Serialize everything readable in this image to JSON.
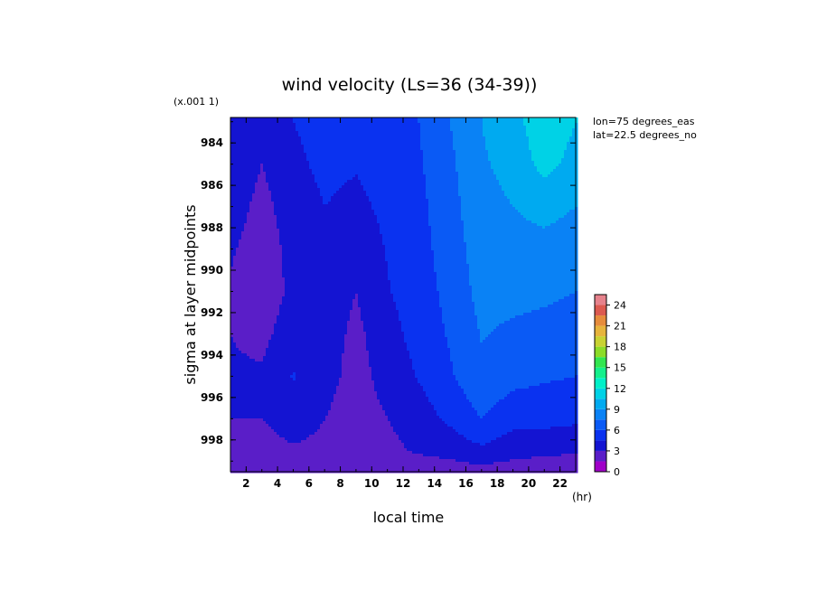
{
  "chart_data": {
    "type": "heatmap",
    "title": "wind velocity (Ls=36 (34-39))",
    "xlabel": "local time",
    "ylabel": "sigma at layer midpoints",
    "x_unit": "(hr)",
    "y_multiplier": "(x.001 1)",
    "annotations": [
      "lon=75 degrees_eas",
      "lat=22.5 degrees_no"
    ],
    "xlim": [
      1,
      23
    ],
    "ylim": [
      999.5,
      982.8
    ],
    "x_ticks": [
      "2",
      "4",
      "6",
      "8",
      "10",
      "12",
      "14",
      "16",
      "18",
      "20",
      "22"
    ],
    "y_ticks": [
      "984",
      "986",
      "988",
      "990",
      "992",
      "994",
      "996",
      "998"
    ],
    "colorbar": {
      "ticks": [
        "0",
        "3",
        "6",
        "9",
        "12",
        "15",
        "18",
        "21",
        "24"
      ],
      "levels": [
        0,
        1.5,
        3,
        4.5,
        6,
        7.5,
        9,
        10.5,
        12,
        13.5,
        15,
        16.5,
        18,
        19.5,
        21,
        22.5,
        24,
        25.5
      ],
      "colors": [
        "#a000c8",
        "#5a1ec8",
        "#1414d2",
        "#0a32f0",
        "#0a5af5",
        "#0a82f5",
        "#00aaf0",
        "#00d2e6",
        "#00f0c8",
        "#14f08c",
        "#32e650",
        "#8cdc28",
        "#c8d232",
        "#e6b43c",
        "#e68c3c",
        "#dc5a50",
        "#e6828c"
      ]
    },
    "x": [
      1,
      3,
      5,
      7,
      9,
      11,
      13,
      15,
      17,
      19,
      21,
      23
    ],
    "y": [
      983,
      985,
      987,
      989,
      991,
      993,
      995,
      997,
      998.5,
      999.5
    ],
    "z": [
      [
        4.5,
        3.5,
        4.5,
        5.0,
        4.8,
        5.2,
        6.0,
        7.5,
        9.0,
        10.0,
        11.5,
        10.5
      ],
      [
        4.2,
        3.0,
        4.2,
        4.8,
        4.6,
        5.0,
        5.8,
        7.2,
        8.8,
        9.5,
        11.0,
        10.0
      ],
      [
        3.8,
        2.5,
        3.8,
        4.5,
        4.2,
        4.8,
        5.6,
        7.0,
        8.5,
        9.0,
        9.5,
        9.0
      ],
      [
        3.2,
        2.2,
        3.5,
        4.2,
        3.6,
        4.6,
        5.4,
        6.8,
        8.2,
        8.5,
        8.5,
        8.2
      ],
      [
        2.8,
        2.0,
        3.4,
        4.0,
        3.0,
        4.4,
        5.2,
        6.5,
        8.0,
        8.0,
        7.8,
        7.5
      ],
      [
        3.0,
        2.6,
        3.8,
        3.8,
        2.6,
        4.0,
        5.0,
        6.2,
        7.6,
        7.2,
        7.0,
        6.8
      ],
      [
        3.2,
        3.2,
        4.6,
        3.6,
        2.4,
        3.6,
        4.6,
        5.8,
        7.2,
        6.5,
        6.2,
        6.0
      ],
      [
        3.0,
        3.0,
        3.8,
        3.0,
        2.2,
        3.0,
        3.8,
        4.8,
        6.0,
        5.0,
        5.0,
        4.8
      ],
      [
        2.6,
        2.4,
        2.8,
        2.6,
        2.0,
        2.6,
        3.2,
        3.6,
        4.2,
        3.6,
        3.4,
        3.2
      ],
      [
        1.8,
        1.6,
        1.8,
        1.8,
        1.6,
        1.8,
        2.0,
        2.2,
        2.4,
        2.2,
        2.0,
        1.8
      ]
    ]
  }
}
